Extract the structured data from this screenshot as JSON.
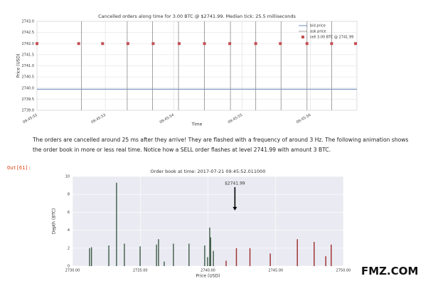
{
  "chart_data": [
    {
      "type": "line",
      "title": "Cancelled orders along time for 3.00 BTC @ $2741.99. Median tick: 25.5 milliseconds",
      "x_label": "Time",
      "y_label": "Price (USD)",
      "xlim": [
        52,
        56.68
      ],
      "xticks": [
        {
          "value": 52,
          "label": "09:45:52"
        },
        {
          "value": 53,
          "label": "09:45:53"
        },
        {
          "value": 54,
          "label": "09:45:54"
        },
        {
          "value": 55,
          "label": "09:45:55"
        },
        {
          "value": 56,
          "label": "09:45:56"
        }
      ],
      "ylim": [
        2739,
        2743
      ],
      "yticks": [
        {
          "value": 2739,
          "label": "2739.0"
        },
        {
          "value": 2739.5,
          "label": "2739.5"
        },
        {
          "value": 2740,
          "label": "2740.0"
        },
        {
          "value": 2740.5,
          "label": "2740.5"
        },
        {
          "value": 2741,
          "label": "2741.0"
        },
        {
          "value": 2741.5,
          "label": "2741.5"
        },
        {
          "value": 2742,
          "label": "2742.0"
        },
        {
          "value": 2742.5,
          "label": "2742.5"
        },
        {
          "value": 2743,
          "label": "2743.0"
        }
      ],
      "grid": true,
      "legend": "upper right",
      "series": [
        {
          "name": "bid price",
          "color": "#4c72b0",
          "style": "line",
          "x": [
            52,
            56.68
          ],
          "values": [
            2739.95,
            2739.95
          ]
        },
        {
          "name": "ask price",
          "color": "#8c8c8c",
          "style": "line",
          "x": [
            52.65,
            52.65,
            null,
            53.32,
            53.32,
            null,
            53.69,
            53.69,
            null,
            54.07,
            54.07,
            null,
            54.45,
            54.45,
            null,
            54.83,
            54.83,
            null,
            55.2,
            55.2,
            null,
            55.57,
            55.57,
            null,
            55.95,
            55.95,
            null,
            56.31,
            56.31
          ],
          "values": [
            2739,
            2743,
            null,
            2739,
            2743,
            null,
            2739,
            2743,
            null,
            2739,
            2743,
            null,
            2739,
            2743,
            null,
            2739,
            2743,
            null,
            2739,
            2743,
            null,
            2739,
            2743,
            null,
            2739,
            2743,
            null,
            2739,
            2743
          ]
        },
        {
          "name": "sell 3.00 BTC @ 2741.99",
          "color": "#c44e52",
          "style": "markers",
          "x": [
            52.0,
            52.61,
            52.96,
            53.33,
            53.7,
            54.08,
            54.45,
            54.82,
            55.2,
            55.56,
            55.95,
            56.31,
            56.66
          ],
          "values": [
            2742,
            2742,
            2742,
            2742,
            2742,
            2742,
            2742,
            2742,
            2742,
            2742,
            2742,
            2742,
            2742
          ]
        }
      ]
    },
    {
      "type": "bar",
      "title": "Order book at time: 2017-07-21 09:45:52.011000",
      "x_label": "Price (USD)",
      "y_label": "Depth (BTC)",
      "xlim": [
        2730,
        2750
      ],
      "xticks": [
        {
          "value": 2730,
          "label": "2730.00"
        },
        {
          "value": 2735,
          "label": "2735.00"
        },
        {
          "value": 2740,
          "label": "2740.00"
        },
        {
          "value": 2745,
          "label": "2745.00"
        },
        {
          "value": 2750,
          "label": "2750.00"
        }
      ],
      "ylim": [
        0,
        10
      ],
      "yticks": [
        0,
        2,
        4,
        6,
        8,
        10
      ],
      "grid": true,
      "series": [
        {
          "color": "#3d5a45",
          "x": [
            2731.26,
            2731.4,
            2732.68,
            2733.25,
            2733.83,
            2734.99,
            2736.2,
            2736.35,
            2736.77,
            2737.45,
            2738.6,
            2739.76,
            2739.97,
            2740.13,
            2740.2,
            2740.4
          ],
          "values": [
            2.0,
            2.1,
            2.3,
            9.3,
            2.5,
            2.2,
            2.4,
            3.0,
            0.5,
            2.5,
            2.5,
            2.3,
            1.0,
            4.3,
            3.2,
            1.7
          ]
        },
        {
          "color": "#9b2a2a",
          "x": [
            2741.34,
            2742.1,
            2743.1,
            2744.6,
            2746.6,
            2747.84,
            2748.7,
            2749.1
          ],
          "values": [
            0.6,
            2.0,
            2.0,
            1.4,
            3.0,
            2.7,
            1.1,
            2.4
          ]
        }
      ],
      "annotation": {
        "text": "$2741.99",
        "xy": [
          2741.99,
          6.2
        ],
        "xytext": [
          2741.99,
          9.2
        ]
      }
    }
  ],
  "paragraph": "The orders are cancelled around 25 ms after they arrive! They are flashed with a frequency of around 3 Hz. The following animation shows the order book in more or less real time. Notice how a SELL order flashes at level 2741.99 with amount 3 BTC.",
  "prompt": "Out[61]:",
  "watermark": "FMZ.COM"
}
